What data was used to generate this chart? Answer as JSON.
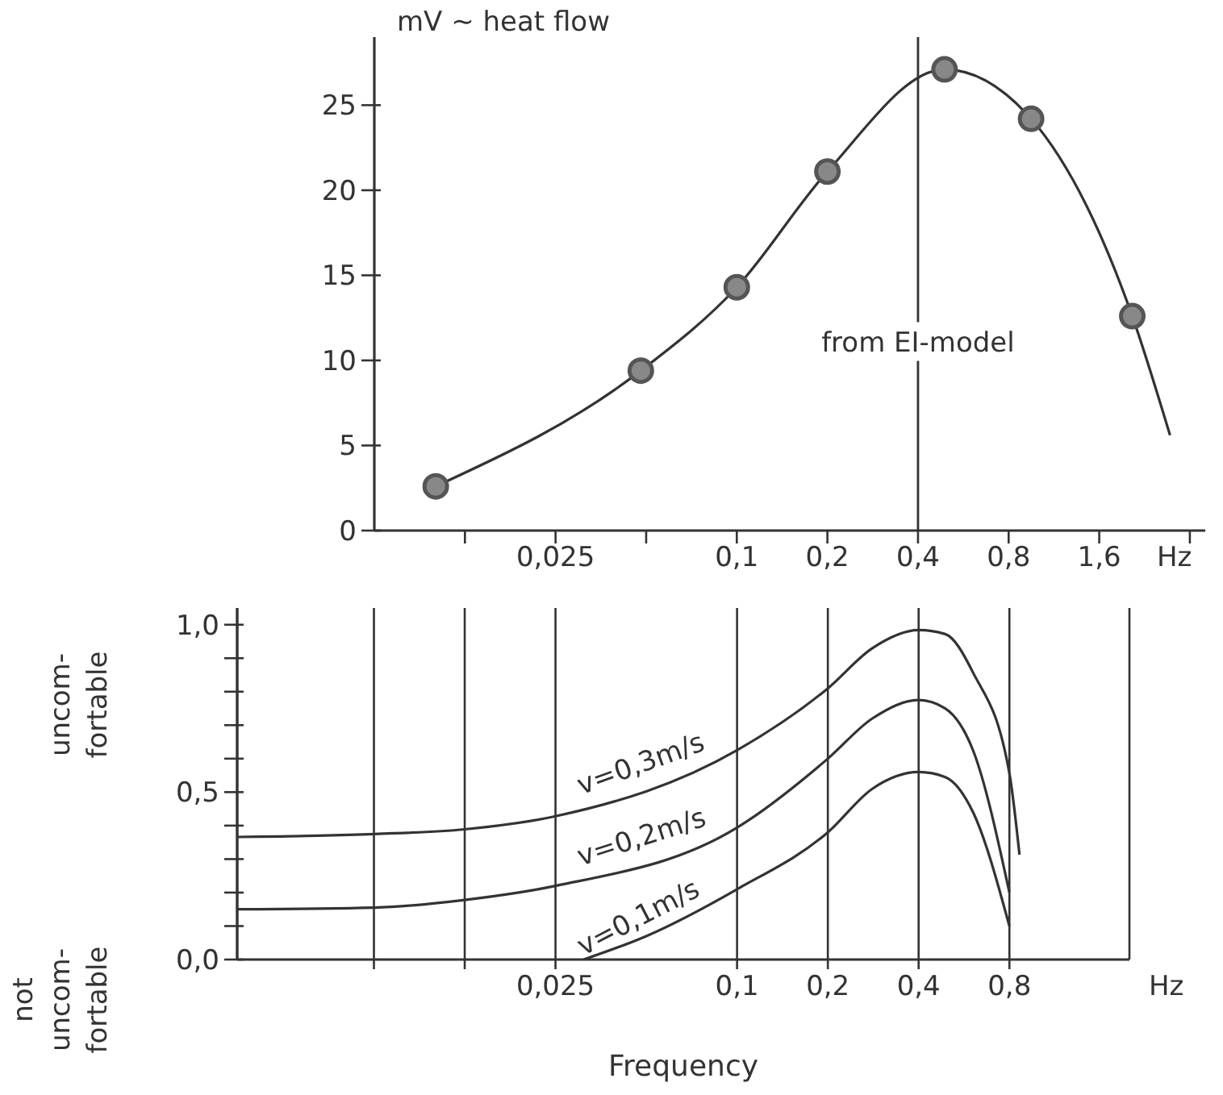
{
  "chart_data": [
    {
      "type": "line",
      "ylabel": "mV ∼ heat flow",
      "xlabel": "Hz",
      "log": "x",
      "xlim": [
        0.00625,
        3.6
      ],
      "xticks": [
        {
          "value": 0.0125,
          "label": null
        },
        {
          "value": 0.025,
          "label": "0,025"
        },
        {
          "value": 0.05,
          "label": null
        },
        {
          "value": 0.1,
          "label": "0,1"
        },
        {
          "value": 0.2,
          "label": "0,2"
        },
        {
          "value": 0.4,
          "label": "0,4"
        },
        {
          "value": 0.8,
          "label": "0,8"
        },
        {
          "value": 1.6,
          "label": "1,6"
        },
        {
          "value": 3.2,
          "label": null
        }
      ],
      "ylim": [
        0,
        29
      ],
      "yticks": [
        0,
        5,
        10,
        15,
        20,
        25
      ],
      "grid": false,
      "legend": false,
      "ref_lines": [
        {
          "axis": "x",
          "value": 0.4,
          "label": "from EI-model"
        }
      ],
      "series": [
        {
          "type": "line",
          "color": "#333333",
          "marker": "none",
          "x": [
            0.01,
            0.048,
            0.1,
            0.2,
            0.49,
            0.95,
            2.06,
            2.75
          ],
          "values": [
            2.6,
            9.4,
            14.3,
            21.1,
            27.1,
            24.2,
            12.6,
            5.6
          ]
        },
        {
          "type": "scatter",
          "color": "#555555",
          "marker": "circle",
          "x": [
            0.01,
            0.048,
            0.1,
            0.2,
            0.49,
            0.95,
            2.06
          ],
          "values": [
            2.6,
            9.4,
            14.3,
            21.1,
            27.1,
            24.2,
            12.6
          ]
        }
      ]
    },
    {
      "type": "line",
      "xlabel": "Frequency",
      "log": "x",
      "xlim": [
        0.0022,
        2
      ],
      "xticks": [
        {
          "value": 0.00625,
          "label": null
        },
        {
          "value": 0.0125,
          "label": null
        },
        {
          "value": 0.025,
          "label": "0,025"
        },
        {
          "value": 0.1,
          "label": "0,1"
        },
        {
          "value": 0.2,
          "label": "0,2"
        },
        {
          "value": 0.4,
          "label": "0,4"
        },
        {
          "value": 0.8,
          "label": "0,8"
        }
      ],
      "ylim": [
        0,
        1.05
      ],
      "yticks": [
        {
          "value": 0,
          "label": "0,0"
        },
        {
          "value": 0.1,
          "label": null
        },
        {
          "value": 0.2,
          "label": null
        },
        {
          "value": 0.3,
          "label": null
        },
        {
          "value": 0.4,
          "label": null
        },
        {
          "value": 0.5,
          "label": "0,5"
        },
        {
          "value": 0.6,
          "label": null
        },
        {
          "value": 0.7,
          "label": null
        },
        {
          "value": 0.8,
          "label": null
        },
        {
          "value": 0.9,
          "label": null
        },
        {
          "value": 1,
          "label": "1,0"
        }
      ],
      "grid": "x",
      "legend": false,
      "annotations": [
        "Hz",
        "uncom-\nfortable",
        "not\nuncom-\nfortable"
      ],
      "series": [
        {
          "name": "v=0,3m/s",
          "color": "#333333",
          "marker": "none",
          "x": [
            0.0022,
            0.00628,
            0.0125,
            0.025,
            0.1,
            0.2,
            0.281,
            0.4,
            0.49,
            0.606,
            0.8,
            0.864
          ],
          "values": [
            0.366,
            0.375,
            0.389,
            0.428,
            0.625,
            0.81,
            0.93,
            0.984,
            0.972,
            0.857,
            0.556,
            0.313
          ]
        },
        {
          "name": "v=0,2m/s",
          "color": "#333333",
          "marker": "none",
          "x": [
            0.0022,
            0.00628,
            0.0125,
            0.025,
            0.1,
            0.2,
            0.281,
            0.4,
            0.49,
            0.606,
            0.8
          ],
          "values": [
            0.15,
            0.155,
            0.178,
            0.22,
            0.394,
            0.6,
            0.72,
            0.775,
            0.75,
            0.625,
            0.2
          ]
        },
        {
          "name": "v=0,1m/s",
          "color": "#333333",
          "marker": "none",
          "x": [
            0.031,
            0.05,
            0.1,
            0.2,
            0.281,
            0.4,
            0.49,
            0.606,
            0.8
          ],
          "values": [
            0,
            0.07,
            0.21,
            0.38,
            0.51,
            0.56,
            0.545,
            0.44,
            0.1
          ]
        }
      ]
    }
  ]
}
